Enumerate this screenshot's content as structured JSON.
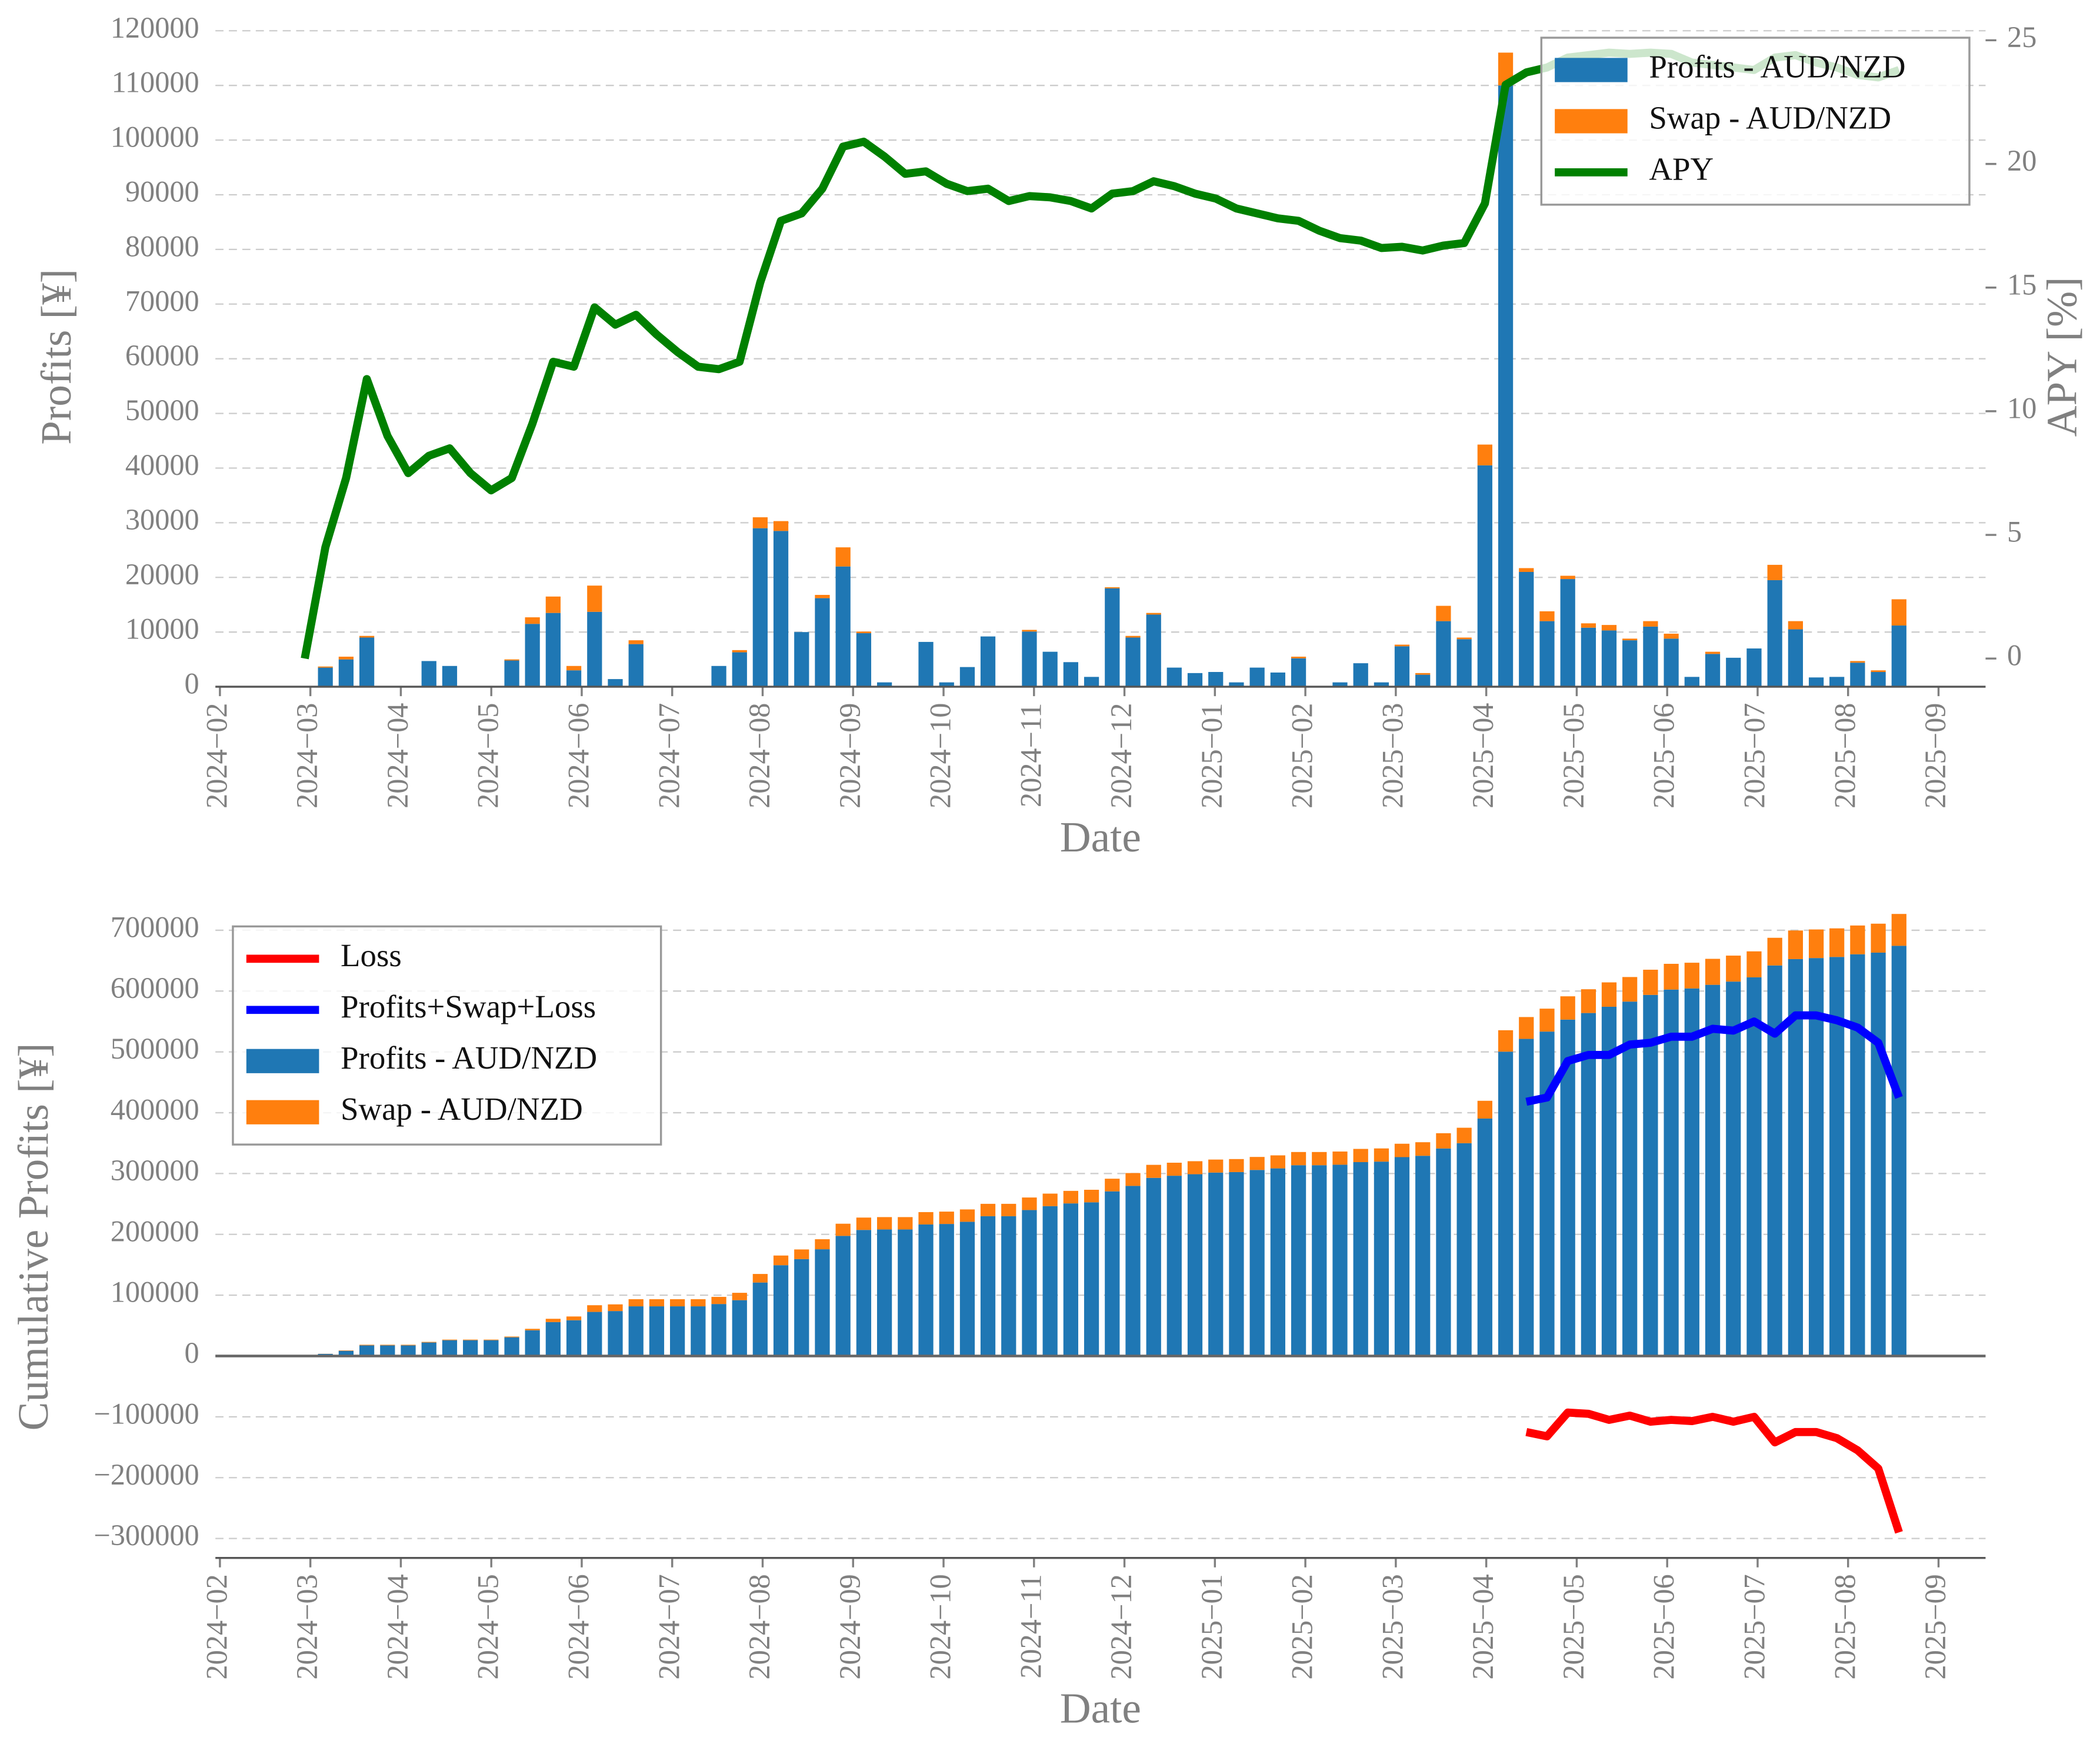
{
  "chart_data": [
    {
      "type": "bar",
      "stacked": true,
      "legend": "upper right",
      "grid": true,
      "xlabel": "Date",
      "ylabel": "Profits [¥]",
      "y2label": "APY [%]",
      "x": [
        0.938,
        1.166,
        1.395,
        1.624,
        1.853,
        2.082,
        2.311,
        2.54,
        2.769,
        2.998,
        3.227,
        3.455,
        3.684,
        3.913,
        4.142,
        4.371,
        4.6,
        4.829,
        5.058,
        5.287,
        5.516,
        5.745,
        5.973,
        6.202,
        6.431,
        6.66,
        6.889,
        7.118,
        7.347,
        7.576,
        7.805,
        8.034,
        8.263,
        8.491,
        8.72,
        8.949,
        9.178,
        9.407,
        9.636,
        9.865,
        10.094,
        10.323,
        10.551,
        10.78,
        11.009,
        11.238,
        11.467,
        11.696,
        11.925,
        12.154,
        12.383,
        12.612,
        12.841,
        13.069,
        13.298,
        13.527,
        13.756,
        13.985,
        14.214,
        14.443,
        14.672,
        14.901,
        15.13,
        15.358,
        15.587,
        15.816,
        16.045,
        16.274,
        16.503,
        16.732,
        16.961,
        17.19,
        17.419,
        17.648,
        17.876,
        18.105,
        18.334,
        18.563
      ],
      "xlim": [
        -0.05,
        19.52
      ],
      "xticks": [
        {
          "value": 0,
          "label": "2024−02"
        },
        {
          "value": 1,
          "label": "2024−03"
        },
        {
          "value": 2,
          "label": "2024−04"
        },
        {
          "value": 3,
          "label": "2024−05"
        },
        {
          "value": 4,
          "label": "2024−06"
        },
        {
          "value": 5,
          "label": "2024−07"
        },
        {
          "value": 6,
          "label": "2024−08"
        },
        {
          "value": 7,
          "label": "2024−09"
        },
        {
          "value": 8,
          "label": "2024−10"
        },
        {
          "value": 9,
          "label": "2024−11"
        },
        {
          "value": 10,
          "label": "2024−12"
        },
        {
          "value": 11,
          "label": "2025−01"
        },
        {
          "value": 12,
          "label": "2025−02"
        },
        {
          "value": 13,
          "label": "2025−03"
        },
        {
          "value": 14,
          "label": "2025−04"
        },
        {
          "value": 15,
          "label": "2025−05"
        },
        {
          "value": 16,
          "label": "2025−06"
        },
        {
          "value": 17,
          "label": "2025−07"
        },
        {
          "value": 18,
          "label": "2025−08"
        },
        {
          "value": 19,
          "label": "2025−09"
        }
      ],
      "ylim": [
        0,
        120700
      ],
      "yticks": [
        0,
        10000,
        20000,
        30000,
        40000,
        50000,
        60000,
        70000,
        80000,
        90000,
        100000,
        110000,
        120000
      ],
      "y2lim": [
        -1.14,
        25.54
      ],
      "y2ticks": [
        0,
        5,
        10,
        15,
        20,
        25
      ],
      "series": [
        {
          "name": "Profits - AUD/NZD",
          "color": "#1f77b4",
          "values": [
            0,
            3500,
            5000,
            9000,
            0,
            0,
            4700,
            3800,
            0,
            0,
            4800,
            11500,
            13500,
            3000,
            13700,
            1400,
            7800,
            0,
            0,
            0,
            3800,
            6300,
            29000,
            28500,
            10000,
            16200,
            22000,
            9800,
            800,
            0,
            8200,
            800,
            3600,
            9200,
            0,
            10100,
            6400,
            4500,
            1800,
            18000,
            9000,
            13200,
            3500,
            2500,
            2700,
            800,
            3500,
            2600,
            5200,
            0,
            800,
            4300,
            800,
            7400,
            2200,
            12000,
            8700,
            40500,
            110000,
            21000,
            12000,
            19700,
            10800,
            10300,
            8500,
            11000,
            8800,
            1800,
            6000,
            5300,
            7000,
            19500,
            10500,
            1700,
            1800,
            4400,
            2700,
            11200
          ]
        },
        {
          "name": "Swap - AUD/NZD",
          "color": "#ff7f0e",
          "values": [
            0,
            200,
            500,
            300,
            0,
            0,
            0,
            0,
            0,
            0,
            200,
            1200,
            3000,
            800,
            4800,
            0,
            700,
            0,
            0,
            0,
            0,
            400,
            2000,
            1800,
            0,
            600,
            3500,
            300,
            0,
            0,
            0,
            0,
            0,
            0,
            0,
            300,
            0,
            0,
            0,
            200,
            300,
            300,
            0,
            0,
            0,
            0,
            0,
            0,
            300,
            0,
            0,
            0,
            0,
            300,
            300,
            2800,
            300,
            3800,
            6000,
            700,
            1800,
            600,
            800,
            1000,
            300,
            1000,
            900,
            0,
            400,
            0,
            0,
            2800,
            1500,
            0,
            0,
            300,
            300,
            4800
          ]
        },
        {
          "name": "APY",
          "type": "line",
          "axis": "y2",
          "color": "#008000",
          "values": [
            0,
            4.5,
            7.3,
            11.3,
            9,
            7.5,
            8.2,
            8.5,
            7.5,
            6.8,
            7.3,
            9.5,
            12,
            11.8,
            14.2,
            13.5,
            13.9,
            13.1,
            12.4,
            11.8,
            11.7,
            12,
            15.2,
            17.7,
            18,
            19,
            20.7,
            20.9,
            20.3,
            19.6,
            19.7,
            19.2,
            18.9,
            19,
            18.5,
            18.7,
            18.65,
            18.5,
            18.2,
            18.8,
            18.9,
            19.3,
            19.1,
            18.8,
            18.6,
            18.2,
            18,
            17.8,
            17.7,
            17.3,
            17,
            16.9,
            16.6,
            16.65,
            16.5,
            16.7,
            16.8,
            18.4,
            23.2,
            23.7,
            23.9,
            24.3,
            24.4,
            24.5,
            24.45,
            24.5,
            24.45,
            24.1,
            24,
            23.9,
            23.8,
            24.3,
            24.4,
            24.1,
            23.9,
            23.6,
            23.5,
            23.8
          ]
        }
      ]
    },
    {
      "type": "bar",
      "stacked": true,
      "legend": "upper left",
      "grid": true,
      "xlabel": "Date",
      "ylabel": "Cumulative Profits [¥]",
      "x": [
        0.938,
        1.166,
        1.395,
        1.624,
        1.853,
        2.082,
        2.311,
        2.54,
        2.769,
        2.998,
        3.227,
        3.455,
        3.684,
        3.913,
        4.142,
        4.371,
        4.6,
        4.829,
        5.058,
        5.287,
        5.516,
        5.745,
        5.973,
        6.202,
        6.431,
        6.66,
        6.889,
        7.118,
        7.347,
        7.576,
        7.805,
        8.034,
        8.263,
        8.491,
        8.72,
        8.949,
        9.178,
        9.407,
        9.636,
        9.865,
        10.094,
        10.323,
        10.551,
        10.78,
        11.009,
        11.238,
        11.467,
        11.696,
        11.925,
        12.154,
        12.383,
        12.612,
        12.841,
        13.069,
        13.298,
        13.527,
        13.756,
        13.985,
        14.214,
        14.443,
        14.672,
        14.901,
        15.13,
        15.358,
        15.587,
        15.816,
        16.045,
        16.274,
        16.503,
        16.732,
        16.961,
        17.19,
        17.419,
        17.648,
        17.876,
        18.105,
        18.334,
        18.563
      ],
      "xlim": [
        -0.05,
        19.52
      ],
      "xticks": [
        {
          "value": 0,
          "label": "2024−02"
        },
        {
          "value": 1,
          "label": "2024−03"
        },
        {
          "value": 2,
          "label": "2024−04"
        },
        {
          "value": 3,
          "label": "2024−05"
        },
        {
          "value": 4,
          "label": "2024−06"
        },
        {
          "value": 5,
          "label": "2024−07"
        },
        {
          "value": 6,
          "label": "2024−08"
        },
        {
          "value": 7,
          "label": "2024−09"
        },
        {
          "value": 8,
          "label": "2024−10"
        },
        {
          "value": 9,
          "label": "2024−11"
        },
        {
          "value": 10,
          "label": "2024−12"
        },
        {
          "value": 11,
          "label": "2025−01"
        },
        {
          "value": 12,
          "label": "2025−02"
        },
        {
          "value": 13,
          "label": "2025−03"
        },
        {
          "value": 14,
          "label": "2025−04"
        },
        {
          "value": 15,
          "label": "2025−05"
        },
        {
          "value": 16,
          "label": "2025−06"
        },
        {
          "value": 17,
          "label": "2025−07"
        },
        {
          "value": 18,
          "label": "2025−08"
        },
        {
          "value": 19,
          "label": "2025−09"
        }
      ],
      "ylim": [
        -332000,
        724000
      ],
      "yticks": [
        {
          "value": -300000,
          "label": "−300000"
        },
        {
          "value": -200000,
          "label": "−200000"
        },
        {
          "value": -100000,
          "label": "−100000"
        },
        0,
        100000,
        200000,
        300000,
        400000,
        500000,
        600000,
        700000
      ],
      "series": [
        {
          "name": "Loss",
          "type": "line",
          "color": "#ff0000",
          "values": [
            null,
            null,
            null,
            null,
            null,
            null,
            null,
            null,
            null,
            null,
            null,
            null,
            null,
            null,
            null,
            null,
            null,
            null,
            null,
            null,
            null,
            null,
            null,
            null,
            null,
            null,
            null,
            null,
            null,
            null,
            null,
            null,
            null,
            null,
            null,
            null,
            null,
            null,
            null,
            null,
            null,
            null,
            null,
            null,
            null,
            null,
            null,
            null,
            null,
            null,
            null,
            null,
            null,
            null,
            null,
            null,
            null,
            null,
            null,
            -125000,
            -132000,
            -93000,
            -95000,
            -105000,
            -98000,
            -108000,
            -105000,
            -107000,
            -100000,
            -108000,
            -100000,
            -142000,
            -125000,
            -125000,
            -135000,
            -155000,
            -185000,
            -290000
          ]
        },
        {
          "name": "Profits+Swap+Loss",
          "type": "line",
          "color": "#0000ff",
          "values": [
            null,
            null,
            null,
            null,
            null,
            null,
            null,
            null,
            null,
            null,
            null,
            null,
            null,
            null,
            null,
            null,
            null,
            null,
            null,
            null,
            null,
            null,
            null,
            null,
            null,
            null,
            null,
            null,
            null,
            null,
            null,
            null,
            null,
            null,
            null,
            null,
            null,
            null,
            null,
            null,
            null,
            null,
            null,
            null,
            null,
            null,
            null,
            null,
            null,
            null,
            null,
            null,
            null,
            null,
            null,
            null,
            null,
            null,
            null,
            418000,
            425000,
            485000,
            495000,
            495000,
            512000,
            515000,
            525000,
            525000,
            538000,
            535000,
            550000,
            530000,
            560000,
            560000,
            552000,
            540000,
            515000,
            425000
          ]
        },
        {
          "name": "Profits - AUD/NZD",
          "color": "#1f77b4",
          "values": [
            0,
            3500,
            8500,
            17500,
            17500,
            17500,
            22200,
            26000,
            26000,
            26000,
            30800,
            42300,
            55800,
            58800,
            72500,
            73900,
            81700,
            81700,
            81700,
            81700,
            85500,
            91800,
            120800,
            149300,
            159300,
            175500,
            197500,
            207300,
            208100,
            208100,
            216300,
            217100,
            220700,
            229900,
            229900,
            240000,
            246400,
            250900,
            252700,
            270700,
            279700,
            292900,
            296400,
            298900,
            301600,
            302400,
            305900,
            308500,
            313700,
            313700,
            314500,
            318800,
            319600,
            327000,
            329200,
            341200,
            349900,
            390400,
            500400,
            521400,
            533400,
            553100,
            563900,
            574200,
            582700,
            593700,
            602500,
            604300,
            610300,
            615600,
            622600,
            642100,
            652600,
            654300,
            656100,
            660500,
            663200,
            674400
          ]
        },
        {
          "name": "Swap - AUD/NZD",
          "color": "#ff7f0e",
          "values": [
            0,
            200,
            700,
            1000,
            1000,
            1000,
            1000,
            1000,
            1000,
            1000,
            1200,
            2400,
            5400,
            6200,
            11000,
            11000,
            11700,
            11700,
            11700,
            11700,
            11700,
            12100,
            14100,
            15900,
            15900,
            16500,
            20000,
            20300,
            20300,
            20300,
            20300,
            20300,
            20300,
            20300,
            20300,
            20600,
            20600,
            20600,
            20600,
            20800,
            21100,
            21400,
            21400,
            21400,
            21400,
            21400,
            21400,
            21400,
            21700,
            21700,
            21700,
            21700,
            21700,
            22000,
            22300,
            25100,
            25400,
            29200,
            35200,
            35900,
            37700,
            38300,
            39100,
            40100,
            40400,
            41400,
            42300,
            42300,
            42700,
            42700,
            42700,
            45500,
            47000,
            47000,
            47000,
            47300,
            47600,
            52400
          ]
        }
      ]
    }
  ]
}
